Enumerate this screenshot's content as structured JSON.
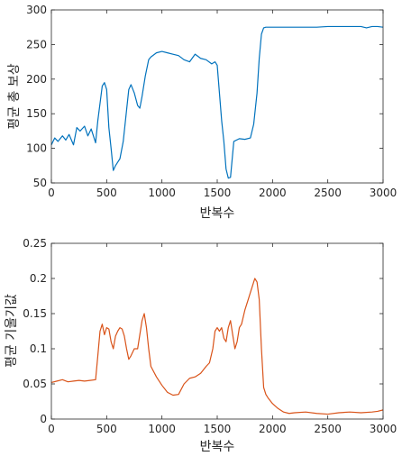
{
  "chart_data": [
    {
      "type": "line",
      "title": "",
      "xlabel": "반복수",
      "ylabel": "평균 총 보상",
      "xlim": [
        0,
        3000
      ],
      "ylim": [
        50,
        300
      ],
      "grid": false,
      "xticks": [
        0,
        500,
        1000,
        1500,
        2000,
        2500,
        3000
      ],
      "yticks": [
        50,
        100,
        150,
        200,
        250,
        300
      ],
      "xtick_labels": [
        "0",
        "500",
        "1000",
        "1500",
        "2000",
        "2500",
        "3000"
      ],
      "ytick_labels": [
        "50",
        "100",
        "150",
        "200",
        "250",
        "300"
      ],
      "color": "#0072BD",
      "series": [
        {
          "x": [
            0,
            30,
            60,
            100,
            130,
            160,
            200,
            230,
            260,
            300,
            330,
            360,
            400,
            420,
            440,
            460,
            480,
            500,
            520,
            540,
            560,
            580,
            600,
            620,
            650,
            680,
            700,
            720,
            750,
            780,
            800,
            820,
            850,
            880,
            900,
            950,
            1000,
            1050,
            1100,
            1150,
            1200,
            1250,
            1300,
            1350,
            1400,
            1450,
            1480,
            1500,
            1520,
            1540,
            1560,
            1580,
            1600,
            1620,
            1650,
            1700,
            1750,
            1800,
            1830,
            1860,
            1880,
            1900,
            1920,
            1940,
            1960,
            2000,
            2100,
            2200,
            2300,
            2400,
            2500,
            2600,
            2700,
            2800,
            2850,
            2900,
            2950,
            3000
          ],
          "y": [
            105,
            115,
            110,
            118,
            112,
            120,
            105,
            130,
            125,
            132,
            118,
            128,
            108,
            140,
            165,
            190,
            195,
            185,
            130,
            100,
            68,
            75,
            80,
            85,
            110,
            155,
            185,
            192,
            180,
            162,
            158,
            175,
            205,
            228,
            232,
            238,
            240,
            238,
            236,
            234,
            228,
            225,
            236,
            230,
            228,
            222,
            225,
            220,
            180,
            140,
            110,
            70,
            57,
            58,
            110,
            114,
            113,
            115,
            135,
            180,
            230,
            265,
            274,
            275,
            275,
            275,
            275,
            275,
            275,
            275,
            276,
            276,
            276,
            276,
            274,
            276,
            276,
            275
          ]
        }
      ]
    },
    {
      "type": "line",
      "title": "",
      "xlabel": "반복수",
      "ylabel": "평균 기울기값",
      "xlim": [
        0,
        3000
      ],
      "ylim": [
        0,
        0.25
      ],
      "grid": false,
      "xticks": [
        0,
        500,
        1000,
        1500,
        2000,
        2500,
        3000
      ],
      "yticks": [
        0,
        0.05,
        0.1,
        0.15,
        0.2,
        0.25
      ],
      "xtick_labels": [
        "0",
        "500",
        "1000",
        "1500",
        "2000",
        "2500",
        "3000"
      ],
      "ytick_labels": [
        "0",
        "0.05",
        "0.1",
        "0.15",
        "0.2",
        "0.25"
      ],
      "color": "#D95319",
      "series": [
        {
          "x": [
            0,
            50,
            100,
            150,
            200,
            250,
            300,
            350,
            400,
            420,
            440,
            460,
            480,
            500,
            520,
            540,
            560,
            580,
            600,
            620,
            640,
            660,
            680,
            700,
            720,
            750,
            780,
            800,
            820,
            840,
            860,
            880,
            900,
            950,
            1000,
            1050,
            1100,
            1150,
            1200,
            1250,
            1300,
            1350,
            1400,
            1430,
            1460,
            1480,
            1500,
            1520,
            1540,
            1560,
            1580,
            1600,
            1620,
            1640,
            1660,
            1680,
            1700,
            1720,
            1750,
            1780,
            1800,
            1820,
            1840,
            1860,
            1880,
            1900,
            1920,
            1940,
            1960,
            2000,
            2050,
            2100,
            2150,
            2200,
            2300,
            2400,
            2500,
            2600,
            2700,
            2800,
            2900,
            2950,
            3000
          ],
          "y": [
            0.052,
            0.054,
            0.056,
            0.053,
            0.054,
            0.055,
            0.054,
            0.055,
            0.056,
            0.09,
            0.125,
            0.135,
            0.12,
            0.13,
            0.128,
            0.11,
            0.1,
            0.118,
            0.125,
            0.13,
            0.128,
            0.118,
            0.1,
            0.085,
            0.09,
            0.1,
            0.1,
            0.12,
            0.14,
            0.15,
            0.13,
            0.1,
            0.075,
            0.06,
            0.048,
            0.038,
            0.034,
            0.035,
            0.05,
            0.058,
            0.06,
            0.065,
            0.075,
            0.08,
            0.1,
            0.125,
            0.13,
            0.125,
            0.13,
            0.115,
            0.11,
            0.13,
            0.14,
            0.12,
            0.1,
            0.11,
            0.13,
            0.135,
            0.155,
            0.17,
            0.18,
            0.19,
            0.2,
            0.195,
            0.17,
            0.1,
            0.045,
            0.035,
            0.03,
            0.022,
            0.015,
            0.01,
            0.008,
            0.009,
            0.01,
            0.008,
            0.007,
            0.009,
            0.01,
            0.009,
            0.01,
            0.011,
            0.013
          ]
        }
      ]
    }
  ]
}
